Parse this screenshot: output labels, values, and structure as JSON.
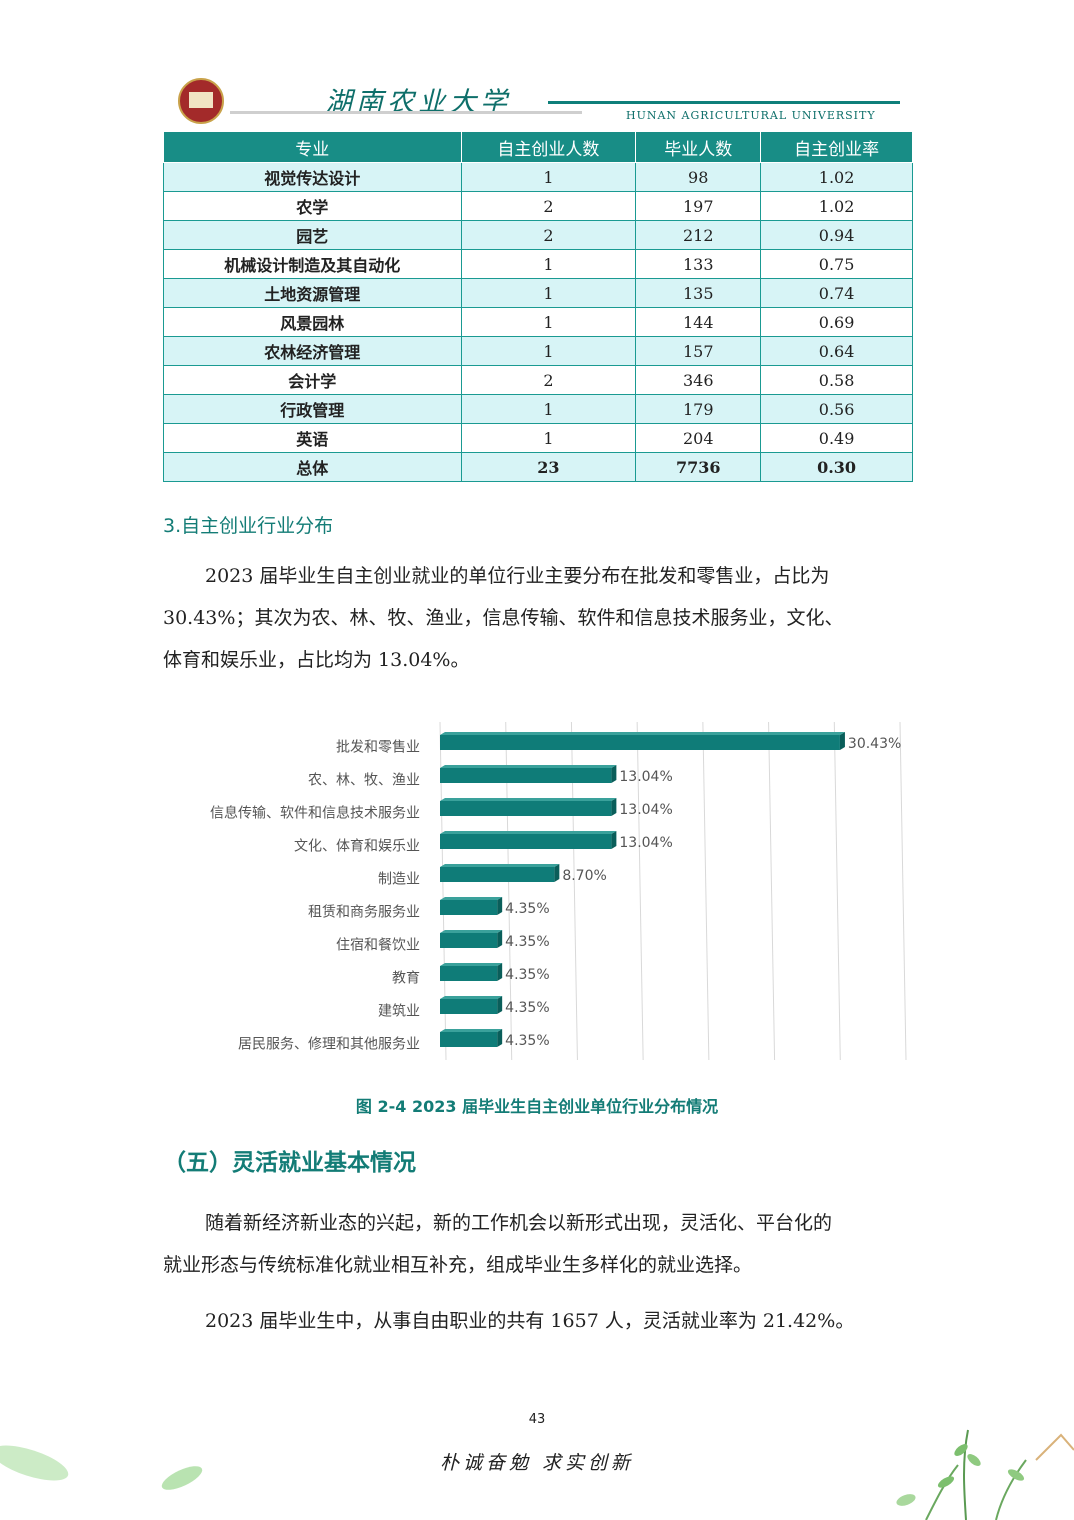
{
  "header": {
    "university_cn": "湖南农业大学",
    "university_en": "HUNAN AGRICULTURAL UNIVERSITY"
  },
  "table": {
    "headers": [
      "专业",
      "自主创业人数",
      "毕业人数",
      "自主创业率"
    ],
    "rows": [
      {
        "major": "视觉传达设计",
        "entrepreneurs": "1",
        "graduates": "98",
        "rate": "1.02"
      },
      {
        "major": "农学",
        "entrepreneurs": "2",
        "graduates": "197",
        "rate": "1.02"
      },
      {
        "major": "园艺",
        "entrepreneurs": "2",
        "graduates": "212",
        "rate": "0.94"
      },
      {
        "major": "机械设计制造及其自动化",
        "entrepreneurs": "1",
        "graduates": "133",
        "rate": "0.75"
      },
      {
        "major": "土地资源管理",
        "entrepreneurs": "1",
        "graduates": "135",
        "rate": "0.74"
      },
      {
        "major": "风景园林",
        "entrepreneurs": "1",
        "graduates": "144",
        "rate": "0.69"
      },
      {
        "major": "农林经济管理",
        "entrepreneurs": "1",
        "graduates": "157",
        "rate": "0.64"
      },
      {
        "major": "会计学",
        "entrepreneurs": "2",
        "graduates": "346",
        "rate": "0.58"
      },
      {
        "major": "行政管理",
        "entrepreneurs": "1",
        "graduates": "179",
        "rate": "0.56"
      },
      {
        "major": "英语",
        "entrepreneurs": "1",
        "graduates": "204",
        "rate": "0.49"
      }
    ],
    "total": {
      "major": "总体",
      "entrepreneurs": "23",
      "graduates": "7736",
      "rate": "0.30"
    }
  },
  "section3_title": "3.自主创业行业分布",
  "para1_lines": [
    "2023 届毕业生自主创业就业的单位行业主要分布在批发和零售业，占比为",
    "30.43%；其次为农、林、牧、渔业，信息传输、软件和信息技术服务业，文化、",
    "体育和娱乐业，占比均为 13.04%。"
  ],
  "chart_data": {
    "type": "bar",
    "orientation": "horizontal",
    "categories": [
      "批发和零售业",
      "农、林、牧、渔业",
      "信息传输、软件和信息技术服务业",
      "文化、体育和娱乐业",
      "制造业",
      "租赁和商务服务业",
      "住宿和餐饮业",
      "教育",
      "建筑业",
      "居民服务、修理和其他服务业"
    ],
    "values": [
      30.43,
      13.04,
      13.04,
      13.04,
      8.7,
      4.35,
      4.35,
      4.35,
      4.35,
      4.35
    ],
    "value_labels": [
      "30.43%",
      "13.04%",
      "13.04%",
      "13.04%",
      "8.70%",
      "4.35%",
      "4.35%",
      "4.35%",
      "4.35%",
      "4.35%"
    ],
    "xlim": [
      0,
      35
    ],
    "grid": true,
    "bar_color": "#0f7c78"
  },
  "figure_caption": "图 2-4   2023 届毕业生自主创业单位行业分布情况",
  "section5_title": "（五）灵活就业基本情况",
  "para2_lines": [
    "随着新经济新业态的兴起，新的工作机会以新形式出现，灵活化、平台化的",
    "就业形态与传统标准化就业相互补充，组成毕业生多样化的就业选择。"
  ],
  "para3": "2023 届毕业生中，从事自由职业的共有 1657 人，灵活就业率为 21.42%。",
  "page_number": "43",
  "motto": "朴诚奋勉 求实创新"
}
